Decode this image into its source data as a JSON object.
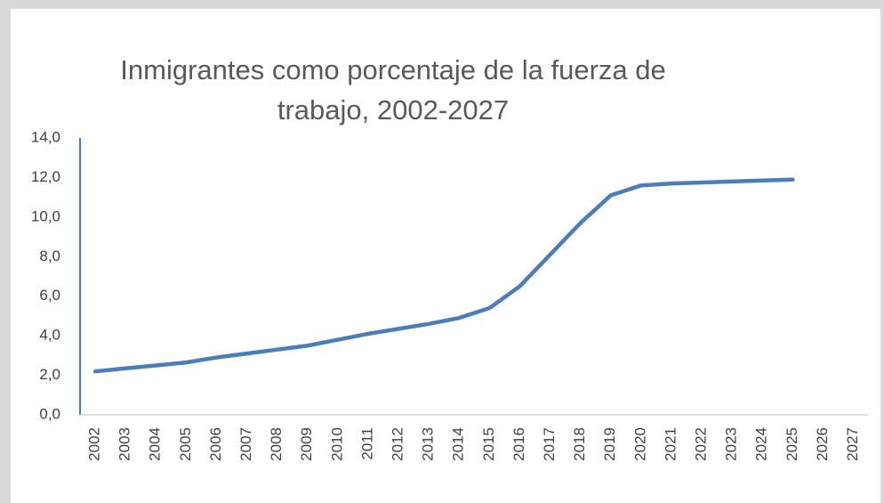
{
  "chart_data": {
    "type": "line",
    "title": "Inmigrantes como porcentaje de la fuerza de trabajo, 2002-2027",
    "categories": [
      "2002",
      "2003",
      "2004",
      "2005",
      "2006",
      "2007",
      "2008",
      "2009",
      "2010",
      "2011",
      "2012",
      "2013",
      "2014",
      "2015",
      "2016",
      "2017",
      "2018",
      "2019",
      "2020",
      "2021",
      "2022",
      "2023",
      "2024",
      "2025",
      "2026",
      "2027"
    ],
    "series": [
      {
        "name": "Inmigrantes",
        "color": "#4a7ebb",
        "values": [
          2.2,
          2.35,
          2.5,
          2.65,
          2.9,
          3.1,
          3.3,
          3.5,
          3.8,
          4.1,
          4.35,
          4.6,
          4.9,
          5.4,
          6.5,
          8.1,
          9.7,
          11.1,
          11.6,
          11.7,
          11.75,
          11.8,
          11.85,
          11.9,
          null,
          null
        ]
      }
    ],
    "ylim": [
      0,
      14
    ],
    "yticks": [
      {
        "value": 0,
        "label": "0,0"
      },
      {
        "value": 2,
        "label": "2,0"
      },
      {
        "value": 4,
        "label": "4,0"
      },
      {
        "value": 6,
        "label": "6,0"
      },
      {
        "value": 8,
        "label": "8,0"
      },
      {
        "value": 10,
        "label": "10,0"
      },
      {
        "value": 12,
        "label": "12,0"
      },
      {
        "value": 14,
        "label": "14,0"
      }
    ],
    "grid": false
  }
}
